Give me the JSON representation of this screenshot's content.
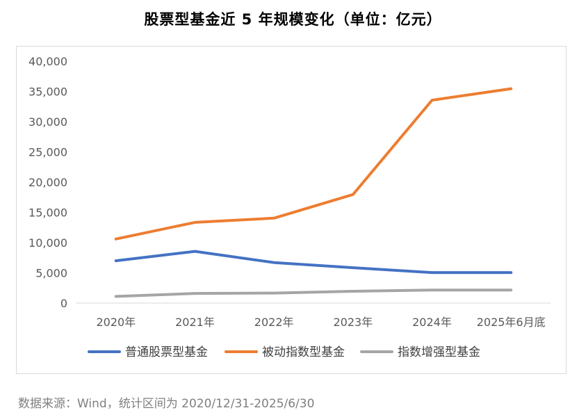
{
  "title": "股票型基金近 5 年规模变化（单位：亿元）",
  "source_note": "数据来源：Wind，统计区间为 2020/12/31-2025/6/30",
  "chart_data": {
    "type": "line",
    "title": "股票型基金近 5 年规模变化（单位：亿元）",
    "categories": [
      "2020年",
      "2021年",
      "2022年",
      "2023年",
      "2024年",
      "2025年6月底"
    ],
    "ylim": [
      0,
      40000
    ],
    "yticks": [
      0,
      5000,
      10000,
      15000,
      20000,
      25000,
      30000,
      35000,
      40000
    ],
    "ytick_labels": [
      "0",
      "5,000",
      "10,000",
      "15,000",
      "20,000",
      "25,000",
      "30,000",
      "35,000",
      "40,000"
    ],
    "grid": false,
    "legend_position": "bottom",
    "series": [
      {
        "name": "普通股票型基金",
        "color": "#4472c4",
        "values": [
          7000,
          8550,
          6700,
          5850,
          5050,
          5050
        ]
      },
      {
        "name": "被动指数型基金",
        "color": "#ed7d31",
        "values": [
          10600,
          13350,
          14050,
          17950,
          33550,
          35450
        ]
      },
      {
        "name": "指数增强型基金",
        "color": "#a5a5a5",
        "values": [
          1100,
          1600,
          1650,
          1950,
          2150,
          2150
        ]
      }
    ]
  }
}
